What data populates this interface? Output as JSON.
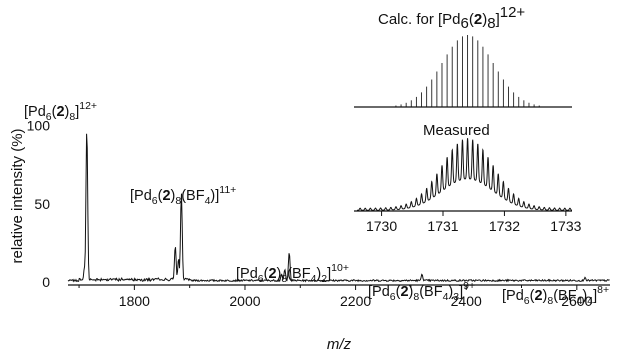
{
  "chart_data": [
    {
      "type": "line",
      "xlabel": "m/z",
      "ylabel": "relative intensity (%)",
      "xlim": [
        1680,
        2660
      ],
      "ylim": [
        0,
        110
      ],
      "x_ticks": [
        1800,
        2000,
        2200,
        2400,
        2600
      ],
      "y_ticks": [
        0,
        50,
        100
      ],
      "series": [
        {
          "peaks": [
            {
              "x": 1714,
              "y": 98
            },
            {
              "x": 1710,
              "y": 10
            },
            {
              "x": 1874,
              "y": 23
            },
            {
              "x": 1880,
              "y": 15
            },
            {
              "x": 1885,
              "y": 57
            },
            {
              "x": 2066,
              "y": 5
            },
            {
              "x": 2072,
              "y": 8
            },
            {
              "x": 2080,
              "y": 19
            },
            {
              "x": 2320,
              "y": 5
            },
            {
              "x": 2615,
              "y": 3
            }
          ]
        }
      ],
      "annotations": [
        {
          "x": 1714,
          "label": [
            {
              "t": "[Pd"
            },
            {
              "t": "6",
              "s": "sub"
            },
            {
              "t": "("
            },
            {
              "t": "2",
              "b": 1
            },
            {
              "t": ")"
            },
            {
              "t": "8",
              "s": "sub"
            },
            {
              "t": "]"
            },
            {
              "t": "12+",
              "s": "sup"
            }
          ]
        },
        {
          "x": 1885,
          "label": [
            {
              "t": "[Pd"
            },
            {
              "t": "6",
              "s": "sub"
            },
            {
              "t": "("
            },
            {
              "t": "2",
              "b": 1
            },
            {
              "t": ")"
            },
            {
              "t": "8",
              "s": "sub"
            },
            {
              "t": "(BF"
            },
            {
              "t": "4",
              "s": "sub"
            },
            {
              "t": ")]"
            },
            {
              "t": "11+",
              "s": "sup"
            }
          ]
        },
        {
          "x": 2080,
          "label": [
            {
              "t": "[Pd"
            },
            {
              "t": "6",
              "s": "sub"
            },
            {
              "t": "("
            },
            {
              "t": "2",
              "b": 1
            },
            {
              "t": ")"
            },
            {
              "t": "8",
              "s": "sub"
            },
            {
              "t": "(BF"
            },
            {
              "t": "4",
              "s": "sub"
            },
            {
              "t": ")"
            },
            {
              "t": "2",
              "s": "sub"
            },
            {
              "t": "]"
            },
            {
              "t": "10+",
              "s": "sup"
            }
          ]
        },
        {
          "x": 2320,
          "label": [
            {
              "t": "[Pd"
            },
            {
              "t": "6",
              "s": "sub"
            },
            {
              "t": "("
            },
            {
              "t": "2",
              "b": 1
            },
            {
              "t": ")"
            },
            {
              "t": "8",
              "s": "sub"
            },
            {
              "t": "(BF"
            },
            {
              "t": "4",
              "s": "sub"
            },
            {
              "t": ")"
            },
            {
              "t": "3",
              "s": "sub"
            },
            {
              "t": "]"
            },
            {
              "t": "9+",
              "s": "sup"
            }
          ]
        },
        {
          "x": 2615,
          "label": [
            {
              "t": "[Pd"
            },
            {
              "t": "6",
              "s": "sub"
            },
            {
              "t": "("
            },
            {
              "t": "2",
              "b": 1
            },
            {
              "t": ")"
            },
            {
              "t": "8",
              "s": "sub"
            },
            {
              "t": "(BF"
            },
            {
              "t": "4",
              "s": "sub"
            },
            {
              "t": ")"
            },
            {
              "t": "4",
              "s": "sub"
            },
            {
              "t": "]"
            },
            {
              "t": "8+",
              "s": "sup"
            }
          ]
        }
      ]
    },
    {
      "type": "line",
      "xlim": [
        1729.6,
        1733.1
      ],
      "x_ticks": [
        1730,
        1731,
        1732,
        1733
      ],
      "calc_label": [
        {
          "t": "Calc. for [Pd"
        },
        {
          "t": "6",
          "s": "sub"
        },
        {
          "t": "("
        },
        {
          "t": "2",
          "b": 1
        },
        {
          "t": ")"
        },
        {
          "t": "8",
          "s": "sub"
        },
        {
          "t": "]"
        },
        {
          "t": "12+",
          "s": "sup"
        }
      ],
      "measured_label": "Measured",
      "isotope_spacing": 0.0833,
      "isotope_center": 1731.4,
      "isotope_sigma": 0.42
    }
  ]
}
